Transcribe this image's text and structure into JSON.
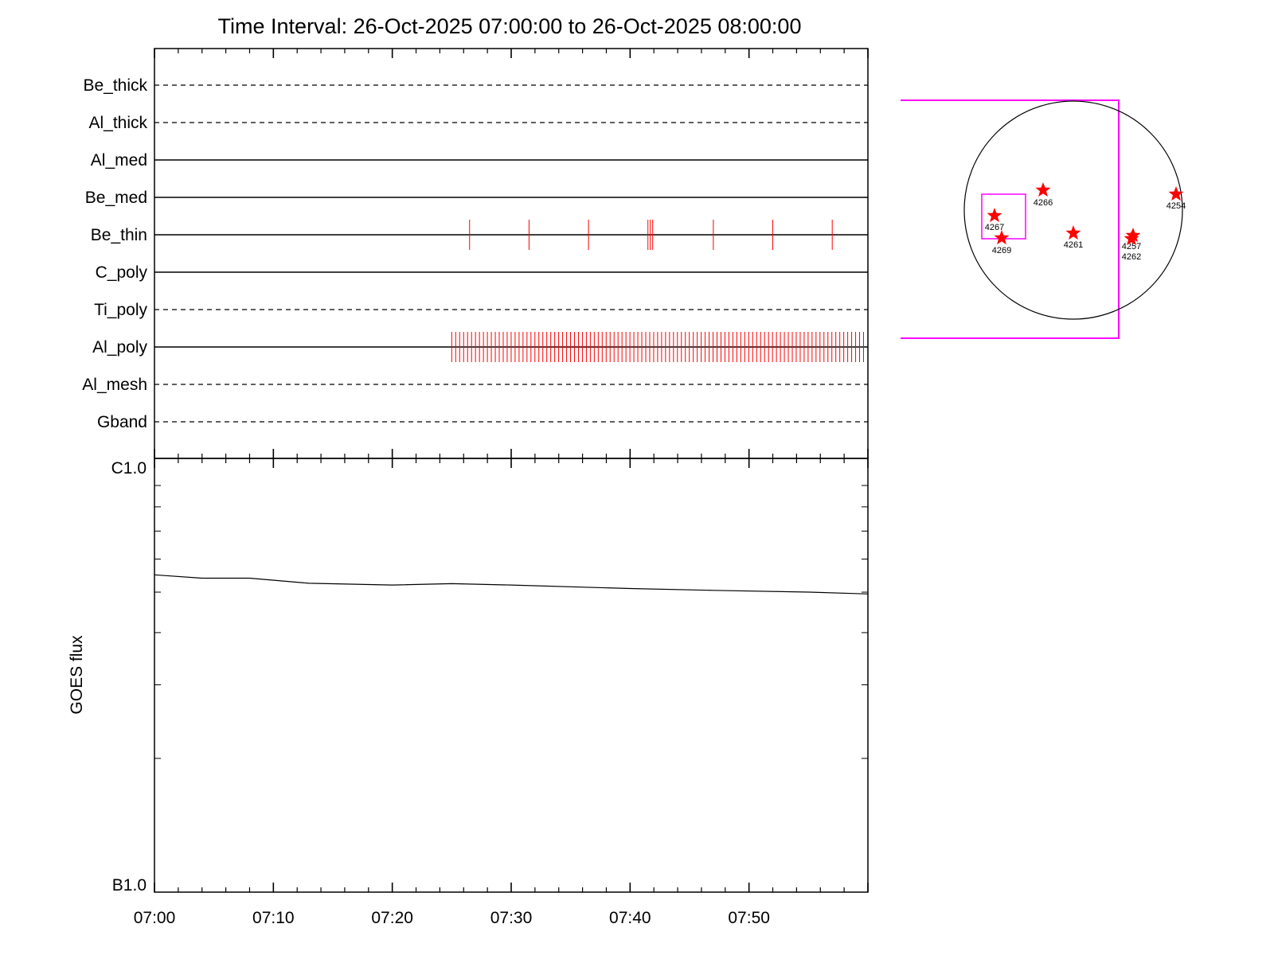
{
  "title": "Time Interval: 26-Oct-2025 07:00:00 to 26-Oct-2025 08:00:00",
  "colors": {
    "exposure_tick": "#ff0000",
    "fov_box": "#ff00ff",
    "star": "#ff0000",
    "axis": "#000000",
    "flux_line": "#000000"
  },
  "chart_data": [
    {
      "type": "line",
      "name": "filter-timeline",
      "x_range": [
        "07:00",
        "08:00"
      ],
      "rows": [
        {
          "label": "Be_thick",
          "style": "dashed",
          "exposures": []
        },
        {
          "label": "Al_thick",
          "style": "dashed",
          "exposures": []
        },
        {
          "label": "Al_med",
          "style": "solid",
          "exposures": []
        },
        {
          "label": "Be_med",
          "style": "solid",
          "exposures": []
        },
        {
          "label": "Be_thin",
          "style": "solid",
          "exposures": [
            "07:26.5",
            "07:31.5",
            "07:36.5",
            "07:41.5",
            "07:41.7",
            "07:41.9",
            "07:47.0",
            "07:52.0",
            "07:57.0"
          ]
        },
        {
          "label": "C_poly",
          "style": "solid",
          "exposures": []
        },
        {
          "label": "Ti_poly",
          "style": "dashed",
          "exposures": []
        },
        {
          "label": "Al_poly",
          "style": "solid",
          "exposures_every_minutes": 0.333,
          "exposures_from": "07:25",
          "exposures_to": "07:59.7"
        },
        {
          "label": "Al_mesh",
          "style": "dashed",
          "exposures": []
        },
        {
          "label": "Gband",
          "style": "dashed",
          "exposures": []
        }
      ]
    },
    {
      "type": "line",
      "name": "goes-flux",
      "ylabel": "GOES flux",
      "y_scale": "log",
      "ylim": [
        1e-07,
        1e-06
      ],
      "y_tick_labels": [
        "C1.0",
        "B1.0"
      ],
      "xlim": [
        "07:00",
        "08:00"
      ],
      "x_tick_labels": [
        "07:00",
        "07:10",
        "07:20",
        "07:30",
        "07:40",
        "07:50"
      ],
      "series": [
        {
          "x": [
            "07:00",
            "07:04",
            "07:08",
            "07:13",
            "07:20",
            "07:25",
            "07:30",
            "07:40",
            "07:47",
            "07:55",
            "08:00"
          ],
          "y": [
            5.5e-07,
            5.4e-07,
            5.4e-07,
            5.25e-07,
            5.2e-07,
            5.24e-07,
            5.2e-07,
            5.1e-07,
            5.05e-07,
            5e-07,
            4.95e-07
          ]
        }
      ]
    },
    {
      "type": "scatter",
      "name": "solar-disk-map",
      "points": [
        {
          "label": "4254"
        },
        {
          "label": "4257"
        },
        {
          "label": "4261"
        },
        {
          "label": "4262"
        },
        {
          "label": "4266"
        },
        {
          "label": "4267"
        },
        {
          "label": "4269"
        }
      ]
    }
  ]
}
